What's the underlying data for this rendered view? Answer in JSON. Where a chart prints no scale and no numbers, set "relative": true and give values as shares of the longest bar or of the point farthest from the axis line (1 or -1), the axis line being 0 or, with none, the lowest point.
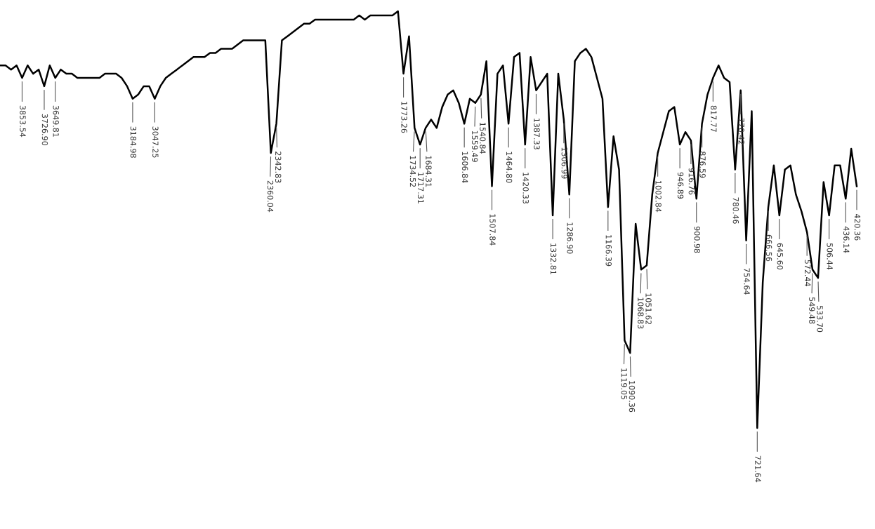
{
  "chart_data": {
    "type": "line",
    "relative": true,
    "color": "#000000",
    "categories": [
      null,
      null,
      null,
      null,
      null,
      null,
      null,
      null,
      null,
      null,
      null,
      null,
      null,
      null,
      null,
      null,
      null,
      null,
      null,
      null,
      null,
      null,
      null,
      null,
      null,
      null,
      null,
      null,
      null,
      null,
      null,
      null,
      null,
      null,
      null,
      null,
      null,
      null,
      null,
      null,
      null,
      null,
      null,
      null,
      null,
      null,
      null,
      null,
      null,
      null,
      null,
      null,
      null,
      null,
      null,
      null,
      null,
      null,
      null,
      null,
      null,
      null,
      null,
      null,
      null,
      null,
      null,
      null,
      null,
      null,
      null,
      null,
      null,
      null,
      null,
      null,
      null,
      null,
      null,
      null,
      null,
      null,
      null,
      null,
      null,
      null,
      null,
      null,
      null,
      null,
      null,
      null,
      null,
      null,
      null,
      null,
      null,
      null,
      null,
      null,
      null,
      null,
      null,
      null,
      null,
      null,
      null,
      null,
      null,
      null,
      null,
      null,
      null,
      null,
      null,
      null,
      null,
      null,
      null,
      null,
      null,
      null,
      null,
      null,
      null,
      null,
      null,
      null,
      null,
      null,
      null,
      null,
      null,
      null,
      null,
      null,
      null,
      null,
      null,
      null,
      null,
      null,
      null,
      null,
      null,
      null,
      null,
      null,
      null,
      null,
      null,
      null,
      null,
      null,
      null,
      null
    ],
    "values": [
      0.87,
      0.87,
      0.86,
      0.87,
      0.84,
      0.87,
      0.85,
      0.86,
      0.82,
      0.87,
      0.84,
      0.86,
      0.85,
      0.85,
      0.84,
      0.84,
      0.84,
      0.84,
      0.84,
      0.85,
      0.85,
      0.85,
      0.84,
      0.82,
      0.79,
      0.8,
      0.82,
      0.82,
      0.79,
      0.82,
      0.84,
      0.85,
      0.86,
      0.87,
      0.88,
      0.89,
      0.89,
      0.89,
      0.9,
      0.9,
      0.91,
      0.91,
      0.91,
      0.92,
      0.93,
      0.93,
      0.93,
      0.93,
      0.93,
      0.66,
      0.73,
      0.93,
      0.94,
      0.95,
      0.96,
      0.97,
      0.97,
      0.98,
      0.98,
      0.98,
      0.98,
      0.98,
      0.98,
      0.98,
      0.98,
      0.99,
      0.98,
      0.99,
      0.99,
      0.99,
      0.99,
      0.99,
      1.0,
      0.85,
      0.94,
      0.72,
      0.68,
      0.72,
      0.74,
      0.72,
      0.77,
      0.8,
      0.81,
      0.78,
      0.73,
      0.79,
      0.78,
      0.8,
      0.88,
      0.58,
      0.85,
      0.87,
      0.73,
      0.89,
      0.9,
      0.68,
      0.89,
      0.81,
      0.83,
      0.85,
      0.51,
      0.85,
      0.74,
      0.56,
      0.88,
      0.9,
      0.91,
      0.89,
      0.84,
      0.79,
      0.53,
      0.7,
      0.62,
      0.21,
      0.18,
      0.49,
      0.38,
      0.39,
      0.56,
      0.66,
      0.71,
      0.76,
      0.77,
      0.68,
      0.71,
      0.69,
      0.55,
      0.73,
      0.8,
      0.84,
      0.87,
      0.84,
      0.83,
      0.62,
      0.81,
      0.45,
      0.76,
      0,
      0.35,
      0.53,
      0.63,
      0.51,
      0.62,
      0.63,
      0.56,
      0.52,
      0.47,
      0.38,
      0.36,
      0.59,
      0.51,
      0.63,
      0.63,
      0.55,
      0.67,
      0.58
    ],
    "annotations": [
      {
        "text": "3853.54",
        "y": 0.84
      },
      {
        "text": "3726.90",
        "y": 0.82
      },
      {
        "text": "3649.81",
        "y": 0.84
      },
      {
        "text": "3184.98",
        "y": 0.79
      },
      {
        "text": "3047.25",
        "y": 0.79
      },
      {
        "text": "2360.04",
        "y": 0.66
      },
      {
        "text": "2342.83",
        "y": 0.73
      },
      {
        "text": "1773.26",
        "y": 0.85
      },
      {
        "text": "1734.52",
        "y": 0.72
      },
      {
        "text": "1717.31",
        "y": 0.68
      },
      {
        "text": "1684.31",
        "y": 0.72
      },
      {
        "text": "1606.84",
        "y": 0.73
      },
      {
        "text": "1559.49",
        "y": 0.78
      },
      {
        "text": "1540.84",
        "y": 0.8
      },
      {
        "text": "1507.84",
        "y": 0.58
      },
      {
        "text": "1464.80",
        "y": 0.73
      },
      {
        "text": "1420.33",
        "y": 0.68
      },
      {
        "text": "1387.33",
        "y": 0.81
      },
      {
        "text": "1332.81",
        "y": 0.51
      },
      {
        "text": "1306.99",
        "y": 0.74
      },
      {
        "text": "1286.90",
        "y": 0.56
      },
      {
        "text": "1166.39",
        "y": 0.53
      },
      {
        "text": "1119.05",
        "y": 0.21
      },
      {
        "text": "1090.36",
        "y": 0.18
      },
      {
        "text": "1068.83",
        "y": 0.38
      },
      {
        "text": "1051.62",
        "y": 0.39
      },
      {
        "text": "1002.84",
        "y": 0.66
      },
      {
        "text": "946.89",
        "y": 0.68
      },
      {
        "text": "916.76",
        "y": 0.69
      },
      {
        "text": "900.98",
        "y": 0.55
      },
      {
        "text": "876.59",
        "y": 0.73
      },
      {
        "text": "817.77",
        "y": 0.84
      },
      {
        "text": "780.46",
        "y": 0.62
      },
      {
        "text": "770.42",
        "y": 0.81
      },
      {
        "text": "754.64",
        "y": 0.45
      },
      {
        "text": "721.64",
        "y": 0
      },
      {
        "text": "666.56",
        "y": 0.53
      },
      {
        "text": "645.60",
        "y": 0.51
      },
      {
        "text": "572.44",
        "y": 0.47
      },
      {
        "text": "549.48",
        "y": 0.38
      },
      {
        "text": "533.70",
        "y": 0.36
      },
      {
        "text": "506.44",
        "y": 0.51
      },
      {
        "text": "436.14",
        "y": 0.55
      },
      {
        "text": "420.36",
        "y": 0.58
      }
    ]
  }
}
